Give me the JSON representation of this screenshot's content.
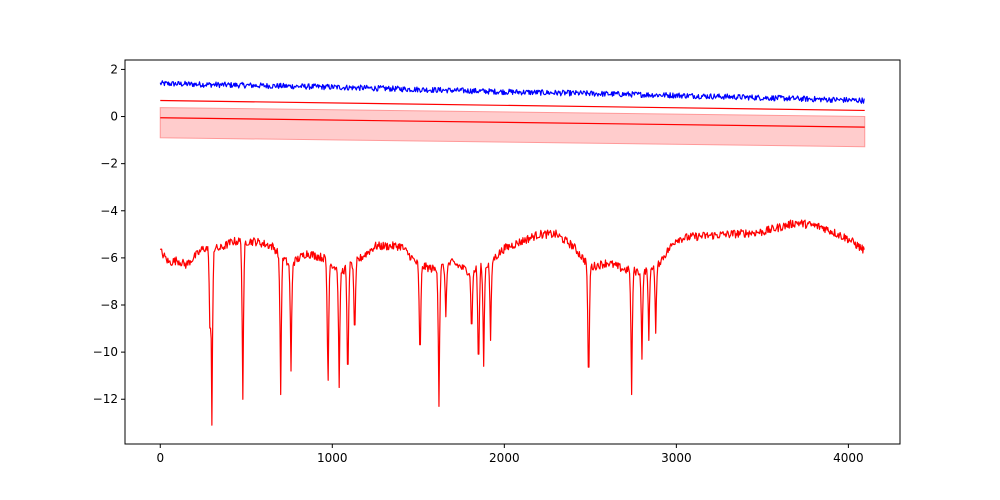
{
  "chart_data": {
    "type": "line",
    "title": "",
    "xlabel": "",
    "ylabel": "",
    "xlim": [
      -205,
      4300
    ],
    "ylim": [
      -13.9,
      2.4
    ],
    "grid": false,
    "x_ticks": [
      0,
      1000,
      2000,
      3000,
      4000
    ],
    "y_ticks": [
      2,
      0,
      -2,
      -4,
      -6,
      -8,
      -10,
      -12
    ],
    "x_tick_labels": [
      "0",
      "1000",
      "2000",
      "3000",
      "4000"
    ],
    "y_tick_labels": [
      "2",
      "0",
      "−2",
      "−4",
      "−6",
      "−8",
      "−10",
      "−12"
    ],
    "colors": {
      "blue": "#0000ff",
      "red": "#ff0000",
      "band_fill": "#ffcccc",
      "band_edge": "#ff9999"
    },
    "series": [
      {
        "kind": "noisy-line",
        "color": "#0000ff",
        "x_range": [
          0,
          4095
        ],
        "trend": [
          [
            0,
            1.4
          ],
          [
            1000,
            1.25
          ],
          [
            2000,
            1.05
          ],
          [
            3000,
            0.9
          ],
          [
            4095,
            0.68
          ]
        ],
        "noise_amplitude": 0.12
      },
      {
        "kind": "line",
        "color": "#ff0000",
        "points": [
          [
            0,
            0.68
          ],
          [
            4095,
            0.26
          ]
        ]
      },
      {
        "kind": "band",
        "color": "#ff0000",
        "x_range": [
          0,
          4095
        ],
        "center": [
          [
            0,
            -0.05
          ],
          [
            4095,
            -0.45
          ]
        ],
        "upper": [
          [
            0,
            0.38
          ],
          [
            4095,
            0.0
          ]
        ],
        "lower": [
          [
            0,
            -0.9
          ],
          [
            4095,
            -1.28
          ]
        ]
      },
      {
        "kind": "noisy-line",
        "color": "#ff0000",
        "x_range": [
          0,
          4095
        ],
        "trend": [
          [
            0,
            -5.7
          ],
          [
            50,
            -6.2
          ],
          [
            100,
            -6.1
          ],
          [
            150,
            -6.3
          ],
          [
            250,
            -5.6
          ],
          [
            350,
            -5.6
          ],
          [
            420,
            -5.3
          ],
          [
            550,
            -5.3
          ],
          [
            650,
            -5.5
          ],
          [
            750,
            -6.3
          ],
          [
            850,
            -5.8
          ],
          [
            950,
            -6.0
          ],
          [
            1050,
            -6.6
          ],
          [
            1150,
            -6.1
          ],
          [
            1250,
            -5.5
          ],
          [
            1400,
            -5.5
          ],
          [
            1500,
            -6.3
          ],
          [
            1600,
            -6.5
          ],
          [
            1700,
            -6.2
          ],
          [
            1800,
            -6.6
          ],
          [
            1900,
            -6.3
          ],
          [
            2000,
            -5.6
          ],
          [
            2100,
            -5.3
          ],
          [
            2200,
            -5.0
          ],
          [
            2300,
            -5.0
          ],
          [
            2400,
            -5.5
          ],
          [
            2500,
            -6.4
          ],
          [
            2600,
            -6.2
          ],
          [
            2700,
            -6.5
          ],
          [
            2800,
            -6.6
          ],
          [
            2900,
            -6.2
          ],
          [
            3000,
            -5.2
          ],
          [
            3100,
            -5.1
          ],
          [
            3300,
            -5.0
          ],
          [
            3500,
            -4.9
          ],
          [
            3700,
            -4.5
          ],
          [
            3850,
            -4.7
          ],
          [
            4000,
            -5.2
          ],
          [
            4095,
            -5.7
          ]
        ],
        "noise_amplitude": 0.18,
        "dips": [
          [
            300,
            -13.1
          ],
          [
            290,
            -10.2
          ],
          [
            480,
            -12.0
          ],
          [
            700,
            -11.8
          ],
          [
            760,
            -10.8
          ],
          [
            975,
            -12.0
          ],
          [
            1040,
            -11.5
          ],
          [
            1090,
            -12.0
          ],
          [
            1130,
            -9.8
          ],
          [
            1510,
            -10.9
          ],
          [
            1620,
            -12.3
          ],
          [
            1660,
            -8.5
          ],
          [
            1810,
            -9.6
          ],
          [
            1850,
            -11.4
          ],
          [
            1880,
            -10.6
          ],
          [
            1920,
            -9.5
          ],
          [
            2490,
            -12.2
          ],
          [
            2740,
            -11.8
          ],
          [
            2800,
            -10.3
          ],
          [
            2840,
            -9.5
          ],
          [
            2880,
            -9.2
          ]
        ]
      }
    ]
  }
}
